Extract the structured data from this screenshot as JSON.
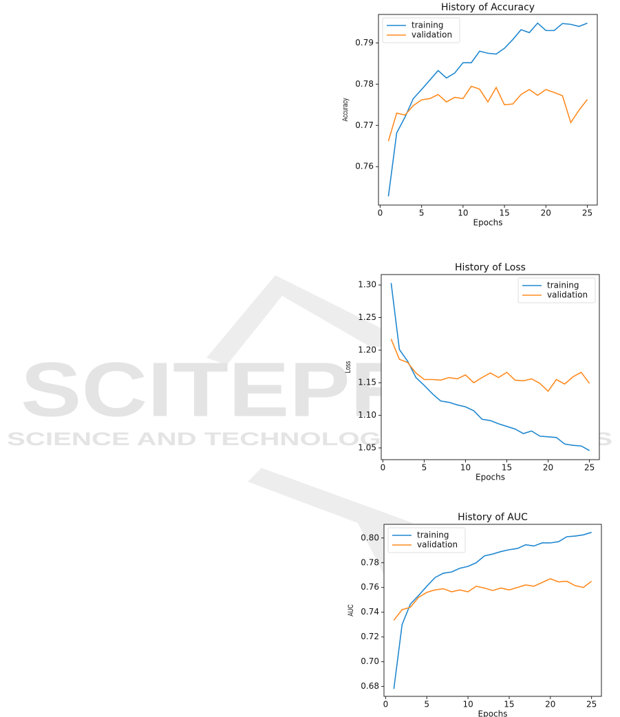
{
  "chart_data": [
    {
      "type": "line",
      "title": "History of Accuracy",
      "x_label": "Epochs",
      "y_label": "Accuracy",
      "x": [
        1,
        2,
        3,
        4,
        5,
        6,
        7,
        8,
        9,
        10,
        11,
        12,
        13,
        14,
        15,
        16,
        17,
        18,
        19,
        20,
        21,
        22,
        23,
        24,
        25
      ],
      "series": [
        {
          "name": "training",
          "color": "#1f87d0",
          "values": [
            0.7528,
            0.7682,
            0.772,
            0.7765,
            0.7787,
            0.781,
            0.7833,
            0.7815,
            0.7827,
            0.7852,
            0.7852,
            0.788,
            0.7875,
            0.7873,
            0.7887,
            0.7908,
            0.7932,
            0.7925,
            0.7948,
            0.793,
            0.793,
            0.7947,
            0.7945,
            0.794,
            0.7948
          ]
        },
        {
          "name": "validation",
          "color": "#ff8a1e",
          "values": [
            0.7662,
            0.773,
            0.7725,
            0.7748,
            0.7762,
            0.7765,
            0.7775,
            0.7757,
            0.7768,
            0.7765,
            0.7795,
            0.7788,
            0.7757,
            0.7792,
            0.775,
            0.7752,
            0.7775,
            0.7787,
            0.7773,
            0.7787,
            0.778,
            0.7772,
            0.7707,
            0.7737,
            0.7763
          ]
        }
      ],
      "xlim": [
        -0.2,
        26.2
      ],
      "xticks": [
        0,
        5,
        10,
        15,
        20,
        25
      ],
      "ylim": [
        0.7507,
        0.7969
      ],
      "yticks": [
        0.76,
        0.77,
        0.78,
        0.79
      ],
      "legend": "upper left"
    },
    {
      "type": "line",
      "title": "History of Loss",
      "x_label": "Epochs",
      "y_label": "Loss",
      "x": [
        1,
        2,
        3,
        4,
        5,
        6,
        7,
        8,
        9,
        10,
        11,
        12,
        13,
        14,
        15,
        16,
        17,
        18,
        19,
        20,
        21,
        22,
        23,
        24,
        25
      ],
      "series": [
        {
          "name": "training",
          "color": "#1f87d0",
          "values": [
            1.303,
            1.201,
            1.183,
            1.158,
            1.146,
            1.133,
            1.122,
            1.12,
            1.116,
            1.113,
            1.107,
            1.094,
            1.092,
            1.087,
            1.083,
            1.079,
            1.072,
            1.076,
            1.068,
            1.067,
            1.066,
            1.056,
            1.054,
            1.053,
            1.046
          ]
        },
        {
          "name": "validation",
          "color": "#ff8a1e",
          "values": [
            1.217,
            1.186,
            1.181,
            1.165,
            1.155,
            1.155,
            1.154,
            1.158,
            1.156,
            1.162,
            1.15,
            1.158,
            1.165,
            1.158,
            1.166,
            1.154,
            1.153,
            1.156,
            1.149,
            1.137,
            1.155,
            1.148,
            1.159,
            1.166,
            1.149
          ]
        }
      ],
      "xlim": [
        -0.2,
        26.2
      ],
      "xticks": [
        0,
        5,
        10,
        15,
        20,
        25
      ],
      "ylim": [
        1.032,
        1.316
      ],
      "yticks": [
        1.05,
        {
          "value": 1.1,
          "label": "1.10"
        },
        1.15,
        {
          "value": 1.2,
          "label": "1.20"
        },
        1.25,
        {
          "value": 1.3,
          "label": "1.30"
        }
      ],
      "legend": "upper right"
    },
    {
      "type": "line",
      "title": "History of AUC",
      "x_label": "Epochs",
      "y_label": "AUC",
      "x": [
        1,
        2,
        3,
        4,
        5,
        6,
        7,
        8,
        9,
        10,
        11,
        12,
        13,
        14,
        15,
        16,
        17,
        18,
        19,
        20,
        21,
        22,
        23,
        24,
        25
      ],
      "series": [
        {
          "name": "training",
          "color": "#1f87d0",
          "values": [
            0.678,
            0.73,
            0.7465,
            0.7535,
            0.761,
            0.768,
            0.7715,
            0.7725,
            0.7755,
            0.777,
            0.78,
            0.7855,
            0.787,
            0.789,
            0.7905,
            0.7915,
            0.7945,
            0.7935,
            0.796,
            0.796,
            0.797,
            0.801,
            0.8015,
            0.8025,
            0.8045
          ]
        },
        {
          "name": "validation",
          "color": "#ff8a1e",
          "values": [
            0.7335,
            0.742,
            0.744,
            0.752,
            0.756,
            0.758,
            0.759,
            0.7565,
            0.758,
            0.7565,
            0.761,
            0.7595,
            0.7575,
            0.7595,
            0.758,
            0.76,
            0.762,
            0.761,
            0.764,
            0.767,
            0.7645,
            0.765,
            0.7615,
            0.76,
            0.765
          ]
        }
      ],
      "xlim": [
        -0.2,
        26.2
      ],
      "xticks": [
        0,
        5,
        10,
        15,
        20,
        25
      ],
      "ylim": [
        0.672,
        0.811
      ],
      "yticks": [
        0.68,
        {
          "value": 0.7,
          "label": "0.70"
        },
        0.72,
        0.74,
        0.76,
        0.78,
        {
          "value": 0.8,
          "label": "0.80"
        }
      ],
      "legend": "upper left"
    }
  ],
  "watermark": {
    "title": "SCITEPRESS",
    "subtitle": "SCIENCE AND TECHNOLOGY PUBLICATIONS"
  }
}
